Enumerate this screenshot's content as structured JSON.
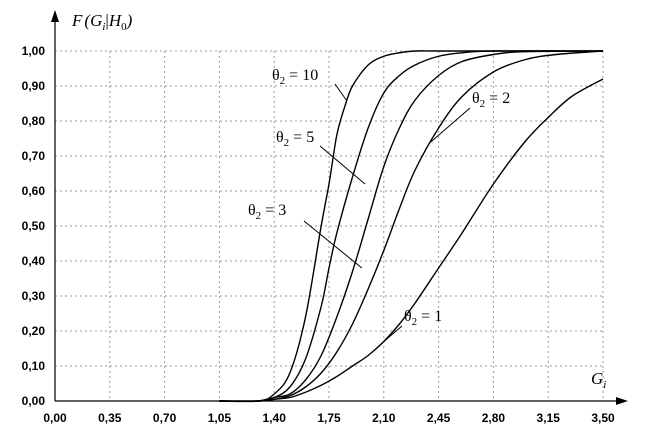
{
  "chart_data": {
    "type": "line",
    "ylabel": {
      "main": "F",
      "open": "(",
      "var": "G",
      "var_sub": "i",
      "bar": "|",
      "cond": "H",
      "cond_sub": "0",
      "close": ")"
    },
    "xlabel": {
      "main": "G",
      "sub": "i"
    },
    "xlim": [
      0,
      3.5
    ],
    "ylim": [
      0,
      1
    ],
    "grid": true,
    "x_ticks": [
      "0,00",
      "0,35",
      "0,70",
      "1,05",
      "1,40",
      "1,75",
      "2,10",
      "2,45",
      "2,80",
      "3,15",
      "3,50"
    ],
    "y_ticks": [
      "0,00",
      "0,10",
      "0,20",
      "0,30",
      "0,40",
      "0,50",
      "0,60",
      "0,70",
      "0,80",
      "0,90",
      "1,00"
    ],
    "series": [
      {
        "name": "θ2 = 10",
        "label_main": "θ",
        "label_sub": "2",
        "label_rest": " = 10",
        "x": [
          1.05,
          1.3,
          1.4,
          1.5,
          1.6,
          1.7,
          1.75,
          1.8,
          1.85,
          1.9,
          2.0,
          2.1,
          2.2,
          2.3,
          2.45,
          2.8,
          3.5
        ],
        "y": [
          0.0,
          0.0,
          0.02,
          0.08,
          0.24,
          0.5,
          0.62,
          0.76,
          0.84,
          0.9,
          0.96,
          0.985,
          0.995,
          1.0,
          1.0,
          1.0,
          1.0
        ]
      },
      {
        "name": "θ2 = 5",
        "label_main": "θ",
        "label_sub": "2",
        "label_rest": " = 5",
        "x": [
          1.05,
          1.3,
          1.4,
          1.5,
          1.6,
          1.7,
          1.75,
          1.8,
          1.9,
          2.0,
          2.1,
          2.2,
          2.3,
          2.45,
          2.6,
          2.8,
          3.5
        ],
        "y": [
          0.0,
          0.0,
          0.01,
          0.04,
          0.12,
          0.27,
          0.38,
          0.48,
          0.64,
          0.78,
          0.88,
          0.93,
          0.96,
          0.985,
          0.995,
          1.0,
          1.0
        ]
      },
      {
        "name": "θ2 = 3",
        "label_main": "θ",
        "label_sub": "2",
        "label_rest": " = 3",
        "x": [
          1.05,
          1.3,
          1.4,
          1.5,
          1.6,
          1.7,
          1.8,
          1.9,
          2.0,
          2.1,
          2.2,
          2.3,
          2.45,
          2.6,
          2.8,
          3.0,
          3.5
        ],
        "y": [
          0.0,
          0.0,
          0.01,
          0.02,
          0.06,
          0.13,
          0.24,
          0.37,
          0.52,
          0.67,
          0.78,
          0.86,
          0.93,
          0.97,
          0.99,
          0.998,
          1.0
        ]
      },
      {
        "name": "θ2 = 2",
        "label_main": "θ",
        "label_sub": "2",
        "label_rest": " = 2",
        "x": [
          1.05,
          1.3,
          1.4,
          1.5,
          1.6,
          1.7,
          1.8,
          1.9,
          2.0,
          2.1,
          2.2,
          2.3,
          2.45,
          2.6,
          2.8,
          3.0,
          3.2,
          3.5
        ],
        "y": [
          0.0,
          0.0,
          0.005,
          0.015,
          0.04,
          0.08,
          0.14,
          0.22,
          0.32,
          0.43,
          0.55,
          0.66,
          0.78,
          0.87,
          0.94,
          0.975,
          0.99,
          1.0
        ]
      },
      {
        "name": "θ2 = 1",
        "label_main": "θ",
        "label_sub": "2",
        "label_rest": " = 1",
        "x": [
          1.05,
          1.3,
          1.4,
          1.5,
          1.6,
          1.7,
          1.8,
          1.9,
          2.0,
          2.1,
          2.2,
          2.3,
          2.45,
          2.6,
          2.8,
          3.0,
          3.15,
          3.3,
          3.5
        ],
        "y": [
          0.0,
          0.0,
          0.005,
          0.01,
          0.025,
          0.045,
          0.07,
          0.1,
          0.13,
          0.17,
          0.22,
          0.28,
          0.38,
          0.48,
          0.62,
          0.74,
          0.81,
          0.87,
          0.92
        ]
      }
    ]
  }
}
